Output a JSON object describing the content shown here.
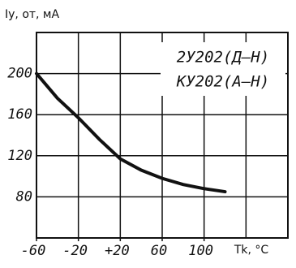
{
  "chart_data": {
    "type": "line",
    "y_label": "Iy, от, мА",
    "x_label": "Tk, °C",
    "annotations": [
      "2У202(Д–Н)",
      "КУ202(А–Н)"
    ],
    "x": [
      -60,
      -40,
      -20,
      0,
      20,
      40,
      60,
      80,
      100,
      120
    ],
    "series": [
      {
        "name": null,
        "color": "#111111",
        "values": [
          200,
          176,
          157,
          136,
          117,
          106,
          98,
          92,
          88,
          85
        ]
      }
    ],
    "xlim": [
      -60,
      180
    ],
    "xticks": [
      -60,
      -20,
      {
        "value": 20,
        "label": "+20"
      },
      60,
      100
    ],
    "ylim": [
      40,
      240
    ],
    "yticks": [
      80,
      120,
      160,
      200
    ],
    "grid": true
  }
}
